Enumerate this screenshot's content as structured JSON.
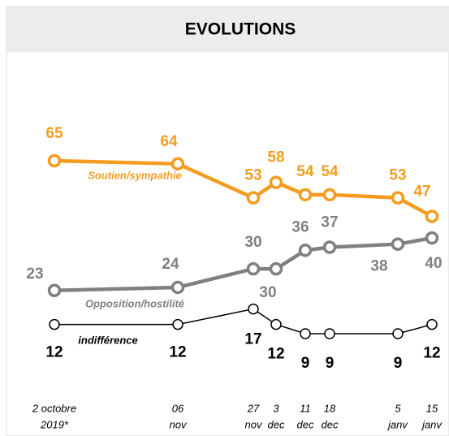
{
  "chart_data": {
    "type": "line",
    "title": "EVOLUTIONS",
    "categories": [
      [
        "2 octobre",
        "2019*"
      ],
      [
        "06",
        "nov"
      ],
      [
        "27",
        "nov"
      ],
      [
        "3",
        "dec"
      ],
      [
        "11",
        "dec"
      ],
      [
        "18",
        "dec"
      ],
      [
        "5",
        "janv"
      ],
      [
        "15",
        "janv"
      ]
    ],
    "series": [
      {
        "name": "Soutien/sympathie",
        "color": "#f39c1f",
        "values": [
          65,
          64,
          53,
          58,
          54,
          54,
          53,
          47
        ]
      },
      {
        "name": "Opposition/hostilité",
        "color": "#808080",
        "values": [
          23,
          24,
          30,
          30,
          36,
          37,
          38,
          40
        ]
      },
      {
        "name": "indifférence",
        "color": "#000000",
        "values": [
          12,
          12,
          17,
          12,
          9,
          9,
          9,
          12
        ]
      }
    ]
  }
}
